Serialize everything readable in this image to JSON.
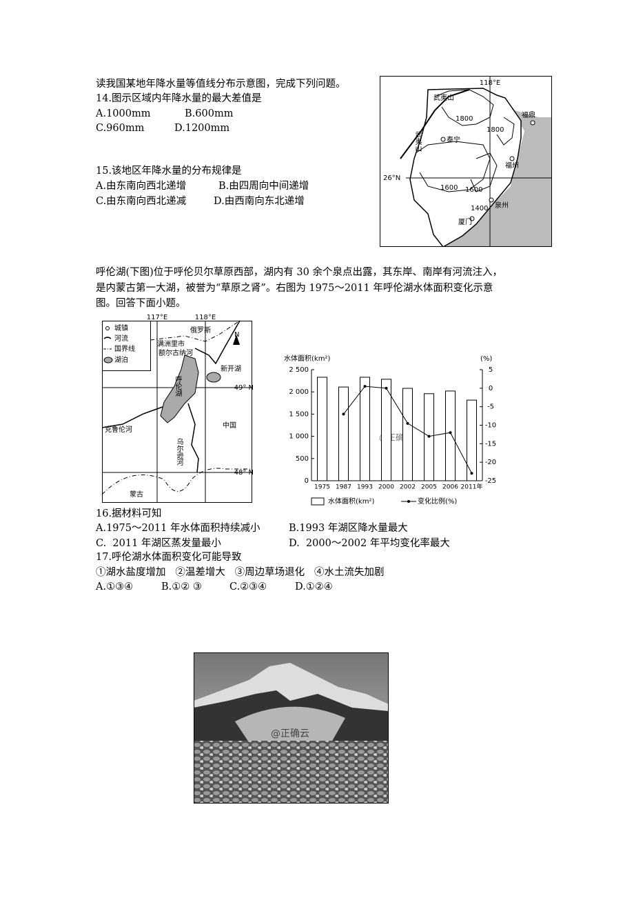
{
  "q14": {
    "intro": "读我国某地年降水量等值线分布示意图，完成下列问题。",
    "question": "14.图示区域内年降水量的最大差值是",
    "options": [
      "A.1000mm",
      "B.600mm",
      "C.960mm",
      "D.1200mm"
    ]
  },
  "map1": {
    "labels": [
      "118°E",
      "武夷山",
      "1800",
      "1800",
      "福鼎",
      "武夷山",
      "泰宁",
      "福州",
      "26°N",
      "1600",
      "1600",
      "1400",
      "泉州",
      "厦门"
    ]
  },
  "q15": {
    "question": "15.该地区年降水量的分布规律是",
    "options": [
      "A.由东南向西北递增",
      "B.由四周向中间递增",
      "C.由东南向西北递减",
      "D.由西南向东北递增"
    ]
  },
  "passage": [
    "呼伦湖(下图)位于呼伦贝尔草原西部，湖内有 30 余个泉点出露，其东岸、南岸有河流注入，",
    "是内蒙古第一大湖，被誉为“草原之肾”。右图为 1975～2011 年呼伦湖水体面积变化示意",
    "图。回答下面小题。"
  ],
  "map2": {
    "labels": [
      "117°E",
      "118°E",
      "城镇",
      "河流",
      "国界线",
      "湖泊",
      "俄罗斯",
      "满洲里市",
      "额尔古纳河",
      "N",
      "新开湖",
      "呼伦湖",
      "49° N",
      "克鲁伦河",
      "乌尔逊河",
      "中国",
      "48° N",
      "蒙古"
    ]
  },
  "chart_data": {
    "type": "bar",
    "y_label": "水体面积(km²)",
    "y2_label": "(%)",
    "watermark": "@正确云",
    "categories": [
      "1975",
      "1987",
      "1993",
      "2000",
      "2002",
      "2005",
      "2006",
      "2011年"
    ],
    "series": [
      {
        "name": "水体面积(km²)",
        "type": "bar",
        "color": "#ffffff",
        "values": [
          2330,
          2110,
          2330,
          2285,
          2080,
          1960,
          2020,
          1815
        ]
      },
      {
        "name": "变化比例(%)",
        "type": "line",
        "axis": "y2",
        "color": "#000000",
        "values": [
          null,
          -7,
          0.5,
          0,
          -9.5,
          -13,
          -12,
          -23
        ]
      }
    ],
    "ylim": [
      0,
      2500
    ],
    "yticks": [
      0,
      500,
      {
        "value": 1000,
        "label": "1 000"
      },
      {
        "value": 1500,
        "label": "1 500"
      },
      {
        "value": 2000,
        "label": "2 000"
      },
      {
        "value": 2500,
        "label": "2 500"
      }
    ],
    "y2lim": [
      -25,
      5
    ],
    "y2ticks": [
      -25,
      -20,
      -15,
      -10,
      -5,
      0,
      5
    ]
  },
  "q16": {
    "question": "16.据材料可知",
    "options": [
      "A.1975～2011 年水体面积持续减小",
      "B.1993 年湖区降水量最大",
      "C.  2011 年湖区蒸发量最小",
      "D.  2000～2002 年平均变化率最大"
    ]
  },
  "q17": {
    "question": "17.呼伦湖水体面积变化可能导致",
    "items": "①湖水盐度增加   ②温差增大   ③周边草场退化   ④水土流失加剧",
    "options": [
      "A.①③④",
      "B.①② ③",
      "C.②③④",
      "D.①②④"
    ]
  },
  "photo": {
    "watermark": "@正确云"
  }
}
